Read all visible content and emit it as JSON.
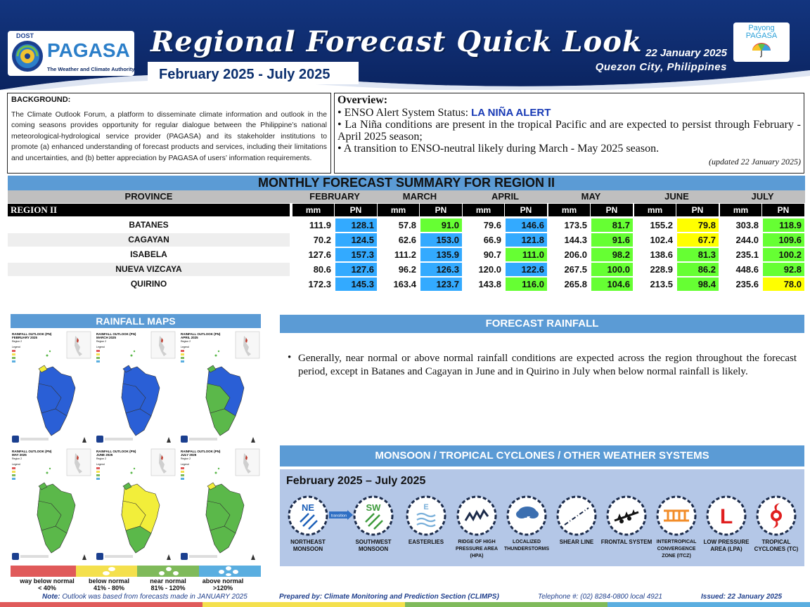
{
  "header": {
    "logo_small": "DOST",
    "logo_name": "PAGASA",
    "logo_tagline": "The Weather and Climate Authority",
    "title": "Regional Forecast Quick Look",
    "period": "February 2025 - July 2025",
    "date": "22 January 2025",
    "location": "Quezon City, Philippines",
    "payong_line1": "Payong",
    "payong_line2": "PAGASA",
    "colors": {
      "navy": "#0d2a6b",
      "accent_blue": "#2c7fc9"
    }
  },
  "background": {
    "title": "BACKGROUND:",
    "text": "The Climate Outlook Forum, a platform to disseminate climate information and outlook in the coming seasons provides opportunity for regular dialogue between the Philippine’s national meteorological-hydrological service provider (PAGASA) and its stakeholder institutions to promote (a) enhanced understanding of forecast products and services, including their limitations and uncertainties, and (b) better appreciation by PAGASA of users’ information requirements."
  },
  "overview": {
    "title": "Overview:",
    "line1_prefix": "ENSO Alert System Status: ",
    "line1_alert": "LA NIÑA ALERT",
    "line2": "La Niña conditions are present in the tropical Pacific and are expected to persist through February - April 2025 season;",
    "line3": "A transition to ENSO-neutral likely during March - May 2025 season.",
    "updated": "(updated 22 January 2025)"
  },
  "summary": {
    "title": "MONTHLY FORECAST SUMMARY FOR REGION II",
    "province_header": "PROVINCE",
    "region_label": "REGION II",
    "months": [
      "FEBRUARY",
      "MARCH",
      "APRIL",
      "MAY",
      "JUNE",
      "JULY"
    ],
    "col_mm": "mm",
    "col_pn": "PN",
    "rows": [
      {
        "province": "BATANES",
        "values": [
          "111.9",
          "128.1",
          "57.8",
          "91.0",
          "79.6",
          "146.6",
          "173.5",
          "81.7",
          "155.2",
          "79.8",
          "303.8",
          "118.9"
        ]
      },
      {
        "province": "CAGAYAN",
        "values": [
          "70.2",
          "124.5",
          "62.6",
          "153.0",
          "66.9",
          "121.8",
          "144.3",
          "91.6",
          "102.4",
          "67.7",
          "244.0",
          "109.6"
        ]
      },
      {
        "province": "ISABELA",
        "values": [
          "127.6",
          "157.3",
          "111.2",
          "135.9",
          "90.7",
          "111.0",
          "206.0",
          "98.2",
          "138.6",
          "81.3",
          "235.1",
          "100.2"
        ]
      },
      {
        "province": "NUEVA VIZCAYA",
        "values": [
          "80.6",
          "127.6",
          "96.2",
          "126.3",
          "120.0",
          "122.6",
          "267.5",
          "100.0",
          "228.9",
          "86.2",
          "448.6",
          "92.8"
        ]
      },
      {
        "province": "QUIRINO",
        "values": [
          "172.3",
          "145.3",
          "163.4",
          "123.7",
          "143.8",
          "116.0",
          "265.8",
          "104.6",
          "213.5",
          "98.4",
          "235.6",
          "78.0"
        ]
      }
    ],
    "pn_colors": {
      "above_normal": "#33aaff",
      "near_normal": "#66ff33",
      "below_normal": "#ffff00"
    }
  },
  "rainfall_maps": {
    "title": "RAINFALL MAPS",
    "legend": [
      {
        "label1": "way below normal",
        "label2": "< 40%",
        "color": "#e05a5a"
      },
      {
        "label1": "below normal",
        "label2": "41% - 80%",
        "color": "#f4e04d"
      },
      {
        "label1": "near normal",
        "label2": "81% - 120%",
        "color": "#7fba5a"
      },
      {
        "label1": "above normal",
        "label2": ">120%",
        "color": "#5aaee0"
      }
    ],
    "maps": [
      {
        "title": "RAINFALL OUTLOOK (PN)",
        "month": "FEBRUARY 2025",
        "region": "Region 2"
      },
      {
        "title": "RAINFALL OUTLOOK (PN)",
        "month": "MARCH 2025",
        "region": "Region 2"
      },
      {
        "title": "RAINFALL OUTLOOK (PN)",
        "month": "APRIL 2025",
        "region": "Region 2"
      },
      {
        "title": "RAINFALL OUTLOOK (PN)",
        "month": "MAY 2025",
        "region": "Region 2"
      },
      {
        "title": "RAINFALL OUTLOOK (PN)",
        "month": "JUNE 2025",
        "region": "Region 2"
      },
      {
        "title": "RAINFALL OUTLOOK (PN)",
        "month": "JULY 2025",
        "region": "Region 2"
      }
    ]
  },
  "forecast_rainfall": {
    "title": "FORECAST RAINFALL",
    "text": "Generally, near normal or above normal rainfall conditions are expected across the region throughout the forecast period, except in Batanes and Cagayan in June and in Quirino in July when below normal rainfall is likely."
  },
  "systems": {
    "title": "MONSOON / TROPICAL CYCLONES / OTHER WEATHER SYSTEMS",
    "period": "February 2025 – July 2025",
    "transition_label": "transition",
    "items": [
      {
        "label": "NORTHEAST MONSOON",
        "badge": "NE"
      },
      {
        "label": "SOUTHWEST MONSOON",
        "badge": "SW"
      },
      {
        "label": "EASTERLIES",
        "badge": "E"
      },
      {
        "label": "RIDGE OF HIGH PRESSURE AREA (HPA)"
      },
      {
        "label": "LOCALIZED THUNDERSTORMS"
      },
      {
        "label": "SHEAR LINE"
      },
      {
        "label": "FRONTAL SYSTEM"
      },
      {
        "label": "INTERTROPICAL CONVERGENCE ZONE (ITCZ)"
      },
      {
        "label": "LOW PRESSURE AREA (LPA)",
        "badge": "L"
      },
      {
        "label": "TROPICAL CYCLONES (TC)"
      }
    ]
  },
  "footer": {
    "note_label": "Note:",
    "note_text": " Outlook was based from forecasts made in JANUARY 2025",
    "prepared": "Prepared by: Climate Monitoring and Prediction Section (CLIMPS)",
    "telephone": "Telephone #: (02) 8284-0800 local 4921",
    "issued": "Issued: 22 January 2025"
  }
}
